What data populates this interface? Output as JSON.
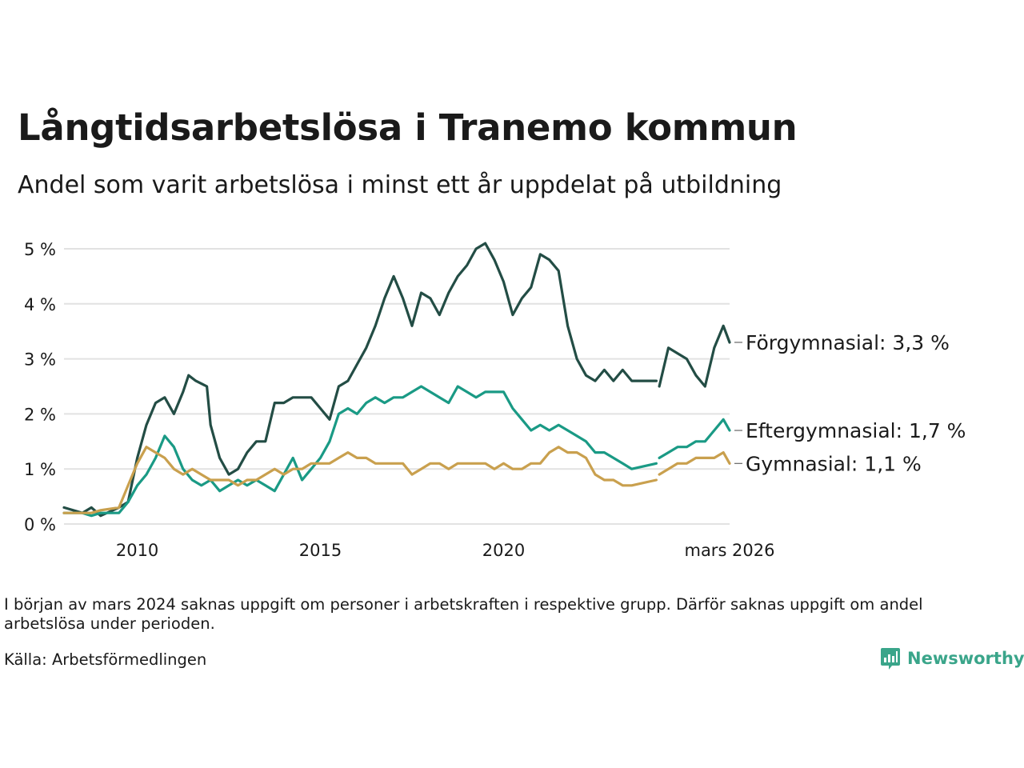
{
  "header": {
    "title": "Långtidsarbetslösa i Tranemo kommun",
    "subtitle": "Andel som varit arbetslösa i minst ett år uppdelat på utbildning"
  },
  "chart_data": {
    "type": "line",
    "title": "Långtidsarbetslösa i Tranemo kommun",
    "subtitle": "Andel som varit arbetslösa i minst ett år uppdelat på utbildning",
    "xlabel": "",
    "ylabel": "",
    "x_unit": "decimal year",
    "xlim": [
      2008.0,
      2026.17
    ],
    "ylim": [
      0,
      5.4
    ],
    "y_ticks": [
      0,
      1,
      2,
      3,
      4,
      5
    ],
    "y_tick_labels": [
      "0 %",
      "1 %",
      "2 %",
      "3 %",
      "4 %",
      "5 %"
    ],
    "x_ticks": [
      2010,
      2015,
      2020,
      2026.17
    ],
    "x_tick_labels": [
      "2010",
      "2015",
      "2020",
      "mars 2026"
    ],
    "gap": [
      2024.17,
      2024.25
    ],
    "grid": true,
    "series": [
      {
        "name": "Förgymnasial",
        "label": "Förgymnasial: 3,3 %",
        "color": "#234d45",
        "points": [
          [
            2008.0,
            0.3
          ],
          [
            2008.5,
            0.2
          ],
          [
            2008.75,
            0.3
          ],
          [
            2009.0,
            0.15
          ],
          [
            2009.5,
            0.3
          ],
          [
            2009.75,
            0.4
          ],
          [
            2010.0,
            1.2
          ],
          [
            2010.25,
            1.8
          ],
          [
            2010.5,
            2.2
          ],
          [
            2010.75,
            2.3
          ],
          [
            2011.0,
            2.0
          ],
          [
            2011.25,
            2.4
          ],
          [
            2011.4,
            2.7
          ],
          [
            2011.6,
            2.6
          ],
          [
            2011.9,
            2.5
          ],
          [
            2012.0,
            1.8
          ],
          [
            2012.25,
            1.2
          ],
          [
            2012.5,
            0.9
          ],
          [
            2012.75,
            1.0
          ],
          [
            2013.0,
            1.3
          ],
          [
            2013.25,
            1.5
          ],
          [
            2013.5,
            1.5
          ],
          [
            2013.75,
            2.2
          ],
          [
            2014.0,
            2.2
          ],
          [
            2014.25,
            2.3
          ],
          [
            2014.5,
            2.3
          ],
          [
            2014.75,
            2.3
          ],
          [
            2015.0,
            2.1
          ],
          [
            2015.25,
            1.9
          ],
          [
            2015.5,
            2.5
          ],
          [
            2015.75,
            2.6
          ],
          [
            2016.0,
            2.9
          ],
          [
            2016.25,
            3.2
          ],
          [
            2016.5,
            3.6
          ],
          [
            2016.75,
            4.1
          ],
          [
            2017.0,
            4.5
          ],
          [
            2017.25,
            4.1
          ],
          [
            2017.5,
            3.6
          ],
          [
            2017.75,
            4.2
          ],
          [
            2018.0,
            4.1
          ],
          [
            2018.25,
            3.8
          ],
          [
            2018.5,
            4.2
          ],
          [
            2018.75,
            4.5
          ],
          [
            2019.0,
            4.7
          ],
          [
            2019.25,
            5.0
          ],
          [
            2019.5,
            5.1
          ],
          [
            2019.75,
            4.8
          ],
          [
            2020.0,
            4.4
          ],
          [
            2020.25,
            3.8
          ],
          [
            2020.5,
            4.1
          ],
          [
            2020.75,
            4.3
          ],
          [
            2021.0,
            4.9
          ],
          [
            2021.25,
            4.8
          ],
          [
            2021.5,
            4.6
          ],
          [
            2021.75,
            3.6
          ],
          [
            2022.0,
            3.0
          ],
          [
            2022.25,
            2.7
          ],
          [
            2022.5,
            2.6
          ],
          [
            2022.75,
            2.8
          ],
          [
            2023.0,
            2.6
          ],
          [
            2023.25,
            2.8
          ],
          [
            2023.5,
            2.6
          ],
          [
            2024.17,
            2.6
          ],
          [
            null,
            null
          ],
          [
            2024.25,
            2.5
          ],
          [
            2024.5,
            3.2
          ],
          [
            2024.75,
            3.1
          ],
          [
            2025.0,
            3.0
          ],
          [
            2025.25,
            2.7
          ],
          [
            2025.5,
            2.5
          ],
          [
            2025.75,
            3.2
          ],
          [
            2026.0,
            3.6
          ],
          [
            2026.17,
            3.3
          ]
        ]
      },
      {
        "name": "Eftergymnasial",
        "label": "Eftergymnasial: 1,7 %",
        "color": "#1a9a85",
        "points": [
          [
            2008.0,
            0.2
          ],
          [
            2008.5,
            0.2
          ],
          [
            2008.75,
            0.15
          ],
          [
            2009.0,
            0.2
          ],
          [
            2009.5,
            0.2
          ],
          [
            2009.75,
            0.4
          ],
          [
            2010.0,
            0.7
          ],
          [
            2010.25,
            0.9
          ],
          [
            2010.5,
            1.2
          ],
          [
            2010.75,
            1.6
          ],
          [
            2011.0,
            1.4
          ],
          [
            2011.25,
            1.0
          ],
          [
            2011.5,
            0.8
          ],
          [
            2011.75,
            0.7
          ],
          [
            2012.0,
            0.8
          ],
          [
            2012.25,
            0.6
          ],
          [
            2012.5,
            0.7
          ],
          [
            2012.75,
            0.8
          ],
          [
            2013.0,
            0.7
          ],
          [
            2013.25,
            0.8
          ],
          [
            2013.5,
            0.7
          ],
          [
            2013.75,
            0.6
          ],
          [
            2014.0,
            0.9
          ],
          [
            2014.25,
            1.2
          ],
          [
            2014.5,
            0.8
          ],
          [
            2014.75,
            1.0
          ],
          [
            2015.0,
            1.2
          ],
          [
            2015.25,
            1.5
          ],
          [
            2015.5,
            2.0
          ],
          [
            2015.75,
            2.1
          ],
          [
            2016.0,
            2.0
          ],
          [
            2016.25,
            2.2
          ],
          [
            2016.5,
            2.3
          ],
          [
            2016.75,
            2.2
          ],
          [
            2017.0,
            2.3
          ],
          [
            2017.25,
            2.3
          ],
          [
            2017.5,
            2.4
          ],
          [
            2017.75,
            2.5
          ],
          [
            2018.0,
            2.4
          ],
          [
            2018.25,
            2.3
          ],
          [
            2018.5,
            2.2
          ],
          [
            2018.75,
            2.5
          ],
          [
            2019.0,
            2.4
          ],
          [
            2019.25,
            2.3
          ],
          [
            2019.5,
            2.4
          ],
          [
            2019.75,
            2.4
          ],
          [
            2020.0,
            2.4
          ],
          [
            2020.25,
            2.1
          ],
          [
            2020.5,
            1.9
          ],
          [
            2020.75,
            1.7
          ],
          [
            2021.0,
            1.8
          ],
          [
            2021.25,
            1.7
          ],
          [
            2021.5,
            1.8
          ],
          [
            2021.75,
            1.7
          ],
          [
            2022.0,
            1.6
          ],
          [
            2022.25,
            1.5
          ],
          [
            2022.5,
            1.3
          ],
          [
            2022.75,
            1.3
          ],
          [
            2023.0,
            1.2
          ],
          [
            2023.25,
            1.1
          ],
          [
            2023.5,
            1.0
          ],
          [
            2024.17,
            1.1
          ],
          [
            null,
            null
          ],
          [
            2024.25,
            1.2
          ],
          [
            2024.5,
            1.3
          ],
          [
            2024.75,
            1.4
          ],
          [
            2025.0,
            1.4
          ],
          [
            2025.25,
            1.5
          ],
          [
            2025.5,
            1.5
          ],
          [
            2025.75,
            1.7
          ],
          [
            2026.0,
            1.9
          ],
          [
            2026.17,
            1.7
          ]
        ]
      },
      {
        "name": "Gymnasial",
        "label": "Gymnasial: 1,1 %",
        "color": "#c9a04e",
        "points": [
          [
            2008.0,
            0.2
          ],
          [
            2008.5,
            0.2
          ],
          [
            2008.75,
            0.2
          ],
          [
            2009.0,
            0.25
          ],
          [
            2009.5,
            0.3
          ],
          [
            2009.75,
            0.7
          ],
          [
            2010.0,
            1.1
          ],
          [
            2010.25,
            1.4
          ],
          [
            2010.5,
            1.3
          ],
          [
            2010.75,
            1.2
          ],
          [
            2011.0,
            1.0
          ],
          [
            2011.25,
            0.9
          ],
          [
            2011.5,
            1.0
          ],
          [
            2011.75,
            0.9
          ],
          [
            2012.0,
            0.8
          ],
          [
            2012.25,
            0.8
          ],
          [
            2012.5,
            0.8
          ],
          [
            2012.75,
            0.7
          ],
          [
            2013.0,
            0.8
          ],
          [
            2013.25,
            0.8
          ],
          [
            2013.5,
            0.9
          ],
          [
            2013.75,
            1.0
          ],
          [
            2014.0,
            0.9
          ],
          [
            2014.25,
            1.0
          ],
          [
            2014.5,
            1.0
          ],
          [
            2014.75,
            1.1
          ],
          [
            2015.0,
            1.1
          ],
          [
            2015.25,
            1.1
          ],
          [
            2015.5,
            1.2
          ],
          [
            2015.75,
            1.3
          ],
          [
            2016.0,
            1.2
          ],
          [
            2016.25,
            1.2
          ],
          [
            2016.5,
            1.1
          ],
          [
            2016.75,
            1.1
          ],
          [
            2017.0,
            1.1
          ],
          [
            2017.25,
            1.1
          ],
          [
            2017.5,
            0.9
          ],
          [
            2017.75,
            1.0
          ],
          [
            2018.0,
            1.1
          ],
          [
            2018.25,
            1.1
          ],
          [
            2018.5,
            1.0
          ],
          [
            2018.75,
            1.1
          ],
          [
            2019.0,
            1.1
          ],
          [
            2019.25,
            1.1
          ],
          [
            2019.5,
            1.1
          ],
          [
            2019.75,
            1.0
          ],
          [
            2020.0,
            1.1
          ],
          [
            2020.25,
            1.0
          ],
          [
            2020.5,
            1.0
          ],
          [
            2020.75,
            1.1
          ],
          [
            2021.0,
            1.1
          ],
          [
            2021.25,
            1.3
          ],
          [
            2021.5,
            1.4
          ],
          [
            2021.75,
            1.3
          ],
          [
            2022.0,
            1.3
          ],
          [
            2022.25,
            1.2
          ],
          [
            2022.5,
            0.9
          ],
          [
            2022.75,
            0.8
          ],
          [
            2023.0,
            0.8
          ],
          [
            2023.25,
            0.7
          ],
          [
            2023.5,
            0.7
          ],
          [
            2024.17,
            0.8
          ],
          [
            null,
            null
          ],
          [
            2024.25,
            0.9
          ],
          [
            2024.5,
            1.0
          ],
          [
            2024.75,
            1.1
          ],
          [
            2025.0,
            1.1
          ],
          [
            2025.25,
            1.2
          ],
          [
            2025.5,
            1.2
          ],
          [
            2025.75,
            1.2
          ],
          [
            2026.0,
            1.3
          ],
          [
            2026.17,
            1.1
          ]
        ]
      }
    ]
  },
  "footer": {
    "note": "I början av mars 2024 saknas uppgift om personer i arbetskraften i respektive grupp. Därför saknas uppgift om andel arbetslösa under perioden.",
    "source": "Källa: Arbetsförmedlingen",
    "brand": "Newsworthy",
    "brand_icon": "bar-chart-icon",
    "brand_color": "#3aa58a"
  }
}
